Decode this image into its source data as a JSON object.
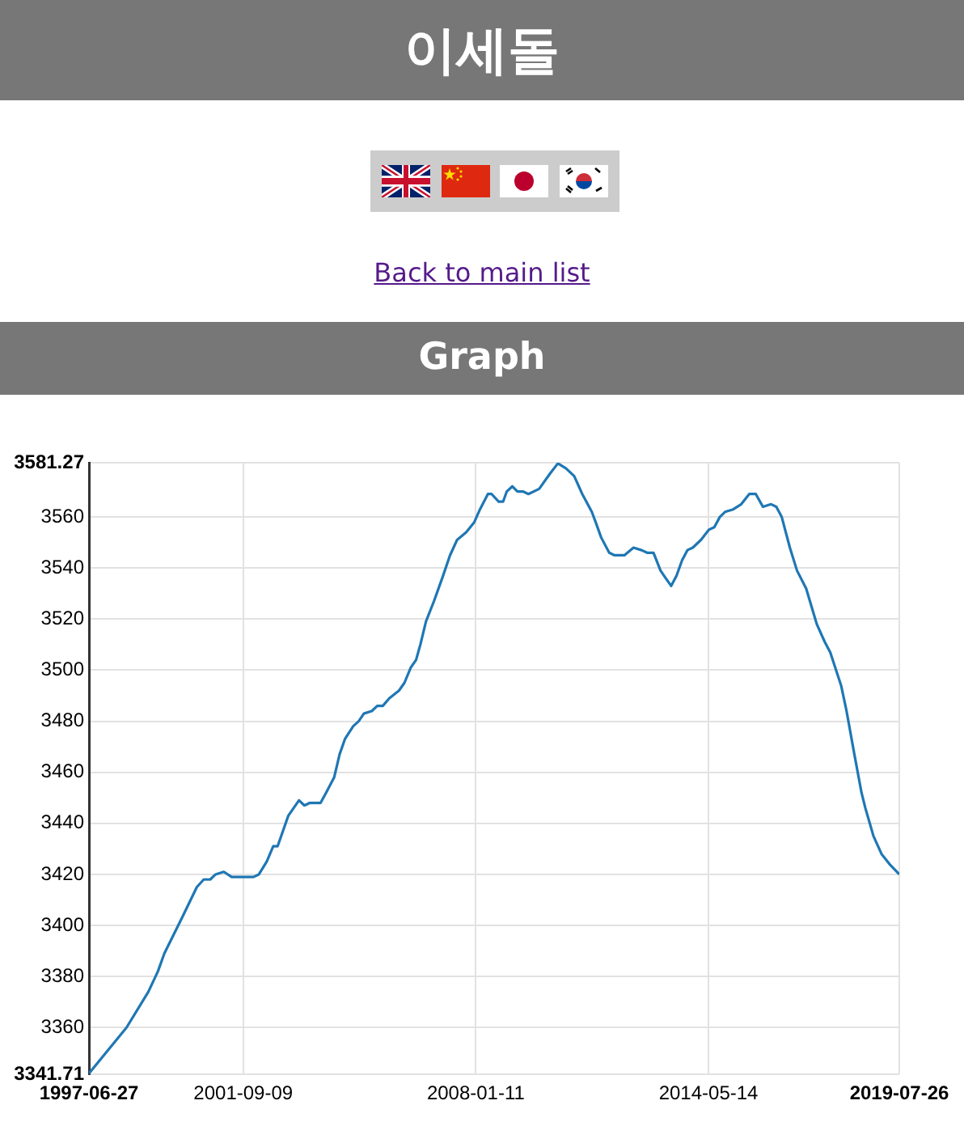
{
  "chart_data": {
    "type": "line",
    "title": "이세돌",
    "subtitle": "Graph",
    "annotations": [
      "Back to main list"
    ],
    "x": [
      "1997-06-27",
      "1998-07-06",
      "1999-02-08",
      "1999-05-14",
      "1999-07-17",
      "2000-01-21",
      "2000-06-04",
      "2000-08-12",
      "2000-10-16",
      "2000-12-08",
      "2001-02-28",
      "2001-05-17",
      "2001-09-30",
      "2001-12-20",
      "2002-02-12",
      "2002-05-01",
      "2002-07-05",
      "2002-08-17",
      "2002-12-02",
      "2003-03-18",
      "2003-05-11",
      "2003-07-05",
      "2003-10-19",
      "2003-12-13",
      "2004-03-02",
      "2004-04-25",
      "2004-06-17",
      "2004-09-07",
      "2004-11-01",
      "2004-12-23",
      "2005-03-12",
      "2005-05-05",
      "2005-06-29",
      "2005-09-02",
      "2005-12-07",
      "2006-01-30",
      "2006-04-03",
      "2006-05-26",
      "2006-07-08",
      "2006-09-01",
      "2006-11-20",
      "2007-02-10",
      "2007-04-29",
      "2007-07-08",
      "2007-10-07",
      "2007-12-27",
      "2008-02-21",
      "2008-05-10",
      "2008-06-16",
      "2008-08-25",
      "2008-10-08",
      "2008-11-14",
      "2009-01-08",
      "2009-02-28",
      "2009-04-23",
      "2009-06-17",
      "2009-10-02",
      "2010-01-18",
      "2010-04-07",
      "2010-06-27",
      "2010-09-16",
      "2010-12-05",
      "2011-03-10",
      "2011-04-17",
      "2011-06-11",
      "2011-08-30",
      "2011-10-22",
      "2012-01-28",
      "2012-04-28",
      "2012-07-17",
      "2012-09-10",
      "2012-11-13",
      "2013-01-22",
      "2013-03-15",
      "2013-05-08",
      "2013-06-30",
      "2013-08-24",
      "2013-10-16",
      "2013-12-09",
      "2014-02-28",
      "2014-05-17",
      "2014-07-11",
      "2014-09-04",
      "2014-10-26",
      "2015-01-15",
      "2015-04-05",
      "2015-06-24",
      "2015-08-28",
      "2015-11-07",
      "2016-01-27",
      "2016-03-19",
      "2016-05-12",
      "2016-08-01",
      "2016-10-11",
      "2017-01-10",
      "2017-04-26",
      "2017-07-15",
      "2017-09-07",
      "2017-12-24",
      "2018-02-16",
      "2018-05-05",
      "2018-07-15",
      "2018-08-22",
      "2018-11-11",
      "2019-01-30",
      "2019-04-20",
      "2019-07-26"
    ],
    "series": [
      {
        "color": "#1f77b4",
        "values": [
          3342,
          3360,
          3374,
          3382,
          3389,
          3404,
          3415,
          3418,
          3418,
          3420,
          3421,
          3419,
          3419,
          3419,
          3420,
          3425,
          3431,
          3431,
          3443,
          3449,
          3447,
          3448,
          3448,
          3452,
          3458,
          3467,
          3473,
          3478,
          3480,
          3483,
          3484,
          3486,
          3486,
          3489,
          3492,
          3495,
          3501,
          3504,
          3510,
          3519,
          3527,
          3536,
          3545,
          3551,
          3554,
          3558,
          3563,
          3569,
          3569,
          3566,
          3566,
          3570,
          3572,
          3570,
          3570,
          3569,
          3571,
          3577,
          3581,
          3579,
          3576,
          3569,
          3562,
          3558,
          3552,
          3546,
          3545,
          3545,
          3548,
          3547,
          3546,
          3546,
          3539,
          3536,
          3533,
          3537,
          3543,
          3547,
          3548,
          3551,
          3555,
          3556,
          3560,
          3562,
          3563,
          3565,
          3569,
          3569,
          3564,
          3565,
          3564,
          3560,
          3548,
          3539,
          3532,
          3518,
          3511,
          3507,
          3494,
          3484,
          3467,
          3452,
          3446,
          3435,
          3428,
          3424,
          3420
        ]
      }
    ],
    "xlim": [
      "1997-06-27",
      "2019-07-26"
    ],
    "xticks": [
      "1997-06-27",
      "2001-09-09",
      "2008-01-11",
      "2014-05-14",
      "2019-07-26"
    ],
    "ylim": [
      3341.71,
      3581.27
    ],
    "yticks": [
      3341.71,
      3360,
      3380,
      3400,
      3420,
      3440,
      3460,
      3480,
      3500,
      3520,
      3540,
      3560,
      3581.27
    ],
    "grid": true,
    "legend": false,
    "marker": "none",
    "line_style": "solid"
  }
}
